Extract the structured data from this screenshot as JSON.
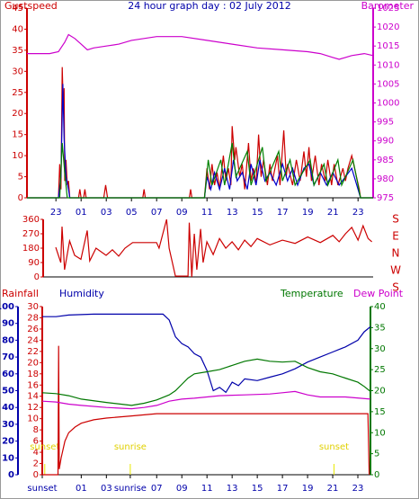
{
  "chart_data": [
    {
      "type": "line",
      "title": "24 hour graph day : 02 July 2012",
      "xlim": [
        -3.3,
        24.2
      ],
      "xticks": [
        {
          "value": -1,
          "label": "23"
        },
        {
          "value": 1,
          "label": "01"
        },
        {
          "value": 3,
          "label": "03"
        },
        {
          "value": 5,
          "label": "05"
        },
        {
          "value": 7,
          "label": "07"
        },
        {
          "value": 9,
          "label": "09"
        },
        11,
        13,
        15,
        17,
        19,
        21,
        23
      ],
      "ylim": [
        0,
        45
      ],
      "yticks": [
        0,
        5,
        10,
        15,
        20,
        25,
        30,
        35,
        40,
        45
      ],
      "y2lim": [
        975,
        1025
      ],
      "y2ticks": [
        975,
        980,
        985,
        990,
        995,
        1000,
        1005,
        1010,
        1015,
        1020,
        1025
      ],
      "series": [
        {
          "name": "Gustspeed",
          "color": "#cc0000",
          "x": [
            -3.3,
            -0.8,
            -0.7,
            -0.6,
            -0.5,
            -0.4,
            -0.35,
            -0.3,
            -0.2,
            -0.1,
            0,
            0.1,
            0.8,
            0.9,
            1.0,
            1.2,
            1.3,
            1.4,
            2.8,
            2.95,
            3.1,
            5.9,
            6.0,
            6.1,
            9.6,
            9.7,
            9.8,
            10.8,
            11,
            11.2,
            11.4,
            11.6,
            11.8,
            12,
            12.3,
            12.5,
            12.7,
            12.9,
            13,
            13.2,
            13.3,
            13.6,
            13.8,
            14,
            14.3,
            14.5,
            14.7,
            14.9,
            15.1,
            15.3,
            15.5,
            15.8,
            16,
            16.2,
            16.6,
            16.8,
            17.1,
            17.3,
            17.4,
            17.8,
            18.1,
            18.4,
            18.7,
            18.9,
            19.1,
            19.3,
            19.6,
            19.9,
            20.1,
            20.4,
            20.6,
            20.9,
            21.1,
            21.4,
            21.8,
            22,
            22.2,
            22.5,
            22.8,
            23.1,
            23.2,
            24.2
          ],
          "values": [
            0,
            0,
            8,
            2,
            31,
            20,
            26,
            4,
            9,
            3,
            4,
            0,
            0,
            2,
            0,
            0,
            2,
            0,
            0,
            3,
            0,
            0,
            2,
            0,
            0,
            2,
            0,
            0,
            7,
            2,
            8,
            3,
            6,
            2,
            10,
            4,
            7,
            3,
            17,
            9,
            12,
            5,
            8,
            2,
            13,
            4,
            7,
            3,
            15,
            5,
            9,
            3,
            8,
            4,
            10,
            3,
            16,
            5,
            8,
            3,
            9,
            4,
            11,
            5,
            12,
            4,
            10,
            3,
            8,
            4,
            9,
            3,
            8,
            3,
            7,
            4,
            7,
            10,
            6,
            2,
            0,
            0
          ]
        },
        {
          "color": "#0000cc",
          "x": [
            -3.3,
            -0.8,
            -0.6,
            -0.45,
            -0.35,
            -0.2,
            0,
            0.1,
            10.8,
            11,
            11.3,
            11.6,
            12,
            12.4,
            12.8,
            13.1,
            13.4,
            13.8,
            14.2,
            14.5,
            14.9,
            15.2,
            15.6,
            16,
            16.5,
            17,
            17.4,
            17.8,
            18.2,
            18.7,
            19.1,
            19.5,
            20,
            20.5,
            21,
            21.5,
            22,
            22.5,
            23,
            23.2,
            24.2
          ],
          "values": [
            0,
            0,
            5,
            27,
            14,
            5,
            2,
            0,
            0,
            5,
            2,
            6,
            2,
            7,
            2,
            9,
            4,
            6,
            2,
            8,
            3,
            9,
            4,
            6,
            3,
            8,
            4,
            7,
            3,
            7,
            8,
            3,
            6,
            3,
            6,
            3,
            5,
            7,
            2,
            0,
            0
          ]
        },
        {
          "color": "#008000",
          "x": [
            -3.3,
            -0.7,
            -0.5,
            -0.3,
            -0.1,
            10.8,
            11.1,
            11.4,
            12.1,
            12.4,
            13,
            13.3,
            14.2,
            14.5,
            15.4,
            15.7,
            16.7,
            17,
            17.6,
            18,
            19.2,
            19.5,
            20.3,
            20.6,
            21.4,
            21.7,
            22.6,
            23,
            23.2,
            24.2
          ],
          "values": [
            0,
            0,
            13,
            6,
            0,
            0,
            9,
            3,
            9,
            3,
            13,
            5,
            11,
            3,
            12,
            4,
            11,
            4,
            9,
            3,
            9,
            3,
            8,
            3,
            9,
            3,
            9,
            3,
            0,
            0
          ]
        },
        {
          "name": "Barometer",
          "color": "#cc00cc",
          "axis": "y2",
          "x": [
            -3.3,
            -1.5,
            -0.8,
            -0.3,
            0,
            0.5,
            1,
            1.5,
            2,
            3,
            4,
            5,
            7,
            9,
            11,
            13,
            15,
            17,
            19,
            20,
            21,
            21.5,
            22.5,
            23.5,
            24.2
          ],
          "values": [
            1013,
            1013,
            1013.5,
            1016,
            1018,
            1017,
            1015.5,
            1014,
            1014.5,
            1015,
            1015.5,
            1016.5,
            1017.5,
            1017.5,
            1016.5,
            1015.5,
            1014.5,
            1014,
            1013.5,
            1013,
            1012,
            1011.5,
            1012.5,
            1013,
            1012.5
          ]
        }
      ]
    },
    {
      "type": "line",
      "xlim": [
        -2,
        24.2
      ],
      "ylim": [
        0,
        360
      ],
      "yticks": [
        0,
        90,
        180,
        270,
        360
      ],
      "compass": [
        "S",
        "E",
        "N",
        "W",
        "S"
      ],
      "series": [
        {
          "color": "#cc0000",
          "x": [
            -1,
            -0.6,
            -0.5,
            -0.3,
            0.1,
            0.5,
            1,
            1.5,
            1.7,
            2.2,
            3,
            3.5,
            4,
            4.5,
            5.1,
            7,
            7.2,
            7.8,
            8,
            8.5,
            9.5,
            9.6,
            9.8,
            10,
            10.2,
            10.5,
            10.7,
            11,
            11.5,
            12,
            12.5,
            13,
            13.5,
            14,
            14.5,
            15,
            16,
            17,
            18,
            19,
            20,
            21,
            21.5,
            22,
            22.5,
            23,
            23.4,
            23.8,
            24.1
          ],
          "values": [
            185,
            90,
            315,
            45,
            225,
            135,
            110,
            290,
            100,
            180,
            135,
            170,
            130,
            180,
            215,
            215,
            180,
            360,
            180,
            5,
            5,
            340,
            0,
            270,
            45,
            300,
            90,
            220,
            140,
            240,
            180,
            220,
            170,
            230,
            190,
            240,
            200,
            230,
            210,
            250,
            215,
            260,
            220,
            270,
            310,
            230,
            320,
            240,
            220
          ]
        }
      ]
    },
    {
      "type": "line",
      "xlim": [
        -2.1,
        24
      ],
      "xticks": [
        {
          "value": -2.1,
          "label": "sunset"
        },
        {
          "value": 1,
          "label": "01"
        },
        {
          "value": 3,
          "label": "03"
        },
        {
          "value": 4.9,
          "label": "sunrise"
        },
        {
          "value": 7,
          "label": "07"
        },
        {
          "value": 9,
          "label": "09"
        },
        11,
        13,
        15,
        17,
        19,
        21,
        23
      ],
      "ylim": [
        0,
        30
      ],
      "yticks": [
        0,
        2,
        4,
        6,
        8,
        10,
        12,
        14,
        16,
        18,
        20,
        22,
        24,
        26,
        28,
        30
      ],
      "y2lim": [
        0,
        40
      ],
      "y2ticks": [
        0,
        5,
        10,
        15,
        20,
        25,
        30,
        35,
        40
      ],
      "y3lim": [
        0,
        100
      ],
      "y3ticks": [
        0,
        10,
        20,
        30,
        40,
        50,
        60,
        70,
        80,
        90,
        100
      ],
      "annotations": [
        {
          "text": "sunset",
          "x": -1.9
        },
        {
          "text": "sunrise",
          "x": 4.9
        },
        {
          "text": "sunset",
          "x": 21.1
        }
      ],
      "series": [
        {
          "name": "Rainfall",
          "color": "#cc0000",
          "x": [
            -2.1,
            -0.85,
            -0.8,
            -0.75,
            -0.6,
            -0.3,
            0,
            0.5,
            1,
            2,
            3,
            5,
            7,
            23.8,
            23.9
          ],
          "values": [
            0,
            0,
            23,
            1,
            3,
            6,
            7.5,
            8.5,
            9.2,
            9.8,
            10.1,
            10.5,
            10.9,
            10.9,
            0
          ]
        },
        {
          "name": "Humidity",
          "color": "#0000aa",
          "axis": "y3",
          "x": [
            -2.1,
            -1,
            0,
            2,
            5,
            7.5,
            8,
            8.5,
            9,
            9.5,
            10,
            10.5,
            11,
            11.5,
            12,
            12.5,
            13,
            13.5,
            14,
            15,
            16,
            17,
            18,
            19,
            20,
            21,
            22,
            23,
            23.5,
            24
          ],
          "values": [
            94,
            94,
            95,
            95.5,
            95.5,
            95.5,
            92,
            82,
            78,
            76,
            72,
            70,
            62,
            50,
            52,
            49,
            55,
            53,
            57,
            56,
            58,
            60,
            63,
            67,
            70,
            73,
            76,
            80,
            85,
            88
          ]
        },
        {
          "name": "Temperature",
          "color": "#007700",
          "axis": "y2",
          "x": [
            -2.1,
            -1,
            0,
            1,
            3,
            5,
            6,
            7,
            8,
            8.5,
            9,
            9.5,
            10,
            11,
            12,
            13,
            14,
            15,
            16,
            17,
            18,
            19,
            20,
            21,
            22,
            23,
            23.5,
            24
          ],
          "values": [
            19.5,
            19.3,
            18.8,
            18,
            17.2,
            16.5,
            17,
            17.8,
            19,
            20,
            21.5,
            23,
            24,
            24.5,
            25,
            26,
            27,
            27.5,
            27,
            26.8,
            27,
            25.5,
            24.5,
            24,
            23,
            22,
            21,
            19.8
          ]
        },
        {
          "name": "Dew Point",
          "color": "#cc00cc",
          "axis": "y2",
          "x": [
            -2.1,
            -1,
            0,
            1,
            3,
            5,
            6,
            7,
            8,
            9,
            10,
            11,
            12,
            14,
            16,
            17,
            18,
            19,
            20,
            22,
            24
          ],
          "values": [
            17.5,
            17.3,
            16.8,
            16.5,
            16,
            15.7,
            16,
            16.5,
            17.5,
            18,
            18.2,
            18.5,
            18.8,
            19,
            19.2,
            19.5,
            19.8,
            19,
            18.5,
            18.5,
            18
          ]
        }
      ]
    }
  ]
}
